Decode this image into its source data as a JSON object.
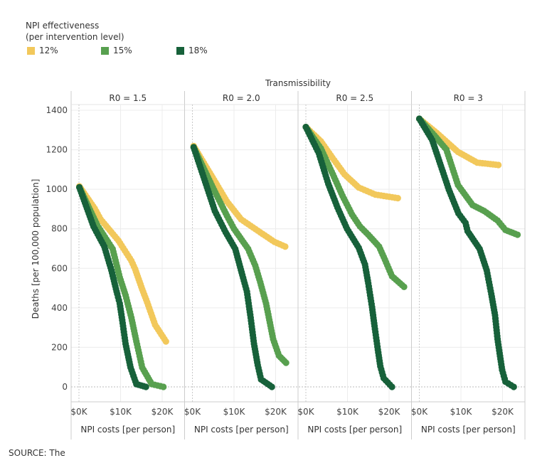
{
  "legend": {
    "title_line1": "NPI effectiveness",
    "title_line2": "(per intervention level)",
    "items": [
      {
        "label": "12%",
        "color": "#f2c85b"
      },
      {
        "label": "15%",
        "color": "#58a04f"
      },
      {
        "label": "18%",
        "color": "#17613a"
      }
    ]
  },
  "source": "SOURCE: The",
  "chart_data": {
    "type": "scatter",
    "facet_title": "Transmissibility",
    "ylabel": "Deaths [per 100,000 population]",
    "xlabel": "NPI costs [per person]",
    "ylim": [
      0,
      1400
    ],
    "yticks": [
      "0",
      "200",
      "400",
      "600",
      "800",
      "1000",
      "1200",
      "1400"
    ],
    "xlim_k": [
      -1.5,
      25.5
    ],
    "xticks": [
      "$0K",
      "$10K",
      "$20K"
    ],
    "grid": true,
    "legend_position": "top-left",
    "facets": [
      {
        "label": "R0 = 1.5",
        "series": [
          {
            "name": "12%",
            "points": [
              [
                0.1,
                1015
              ],
              [
                3.8,
                902
              ],
              [
                5.2,
                848
              ],
              [
                9.5,
                740
              ],
              [
                12.6,
                638
              ],
              [
                13.5,
                596
              ],
              [
                15.2,
                494
              ],
              [
                16.4,
                428
              ],
              [
                18.3,
                314
              ],
              [
                20.9,
                230
              ]
            ]
          },
          {
            "name": "15%",
            "points": [
              [
                0.1,
                1010
              ],
              [
                4.4,
                818
              ],
              [
                8.1,
                698
              ],
              [
                9.8,
                554
              ],
              [
                11.2,
                464
              ],
              [
                12.6,
                350
              ],
              [
                13.8,
                230
              ],
              [
                15.2,
                98
              ],
              [
                17.5,
                14
              ],
              [
                20.3,
                0
              ]
            ]
          },
          {
            "name": "18%",
            "points": [
              [
                0.1,
                1010
              ],
              [
                3.5,
                812
              ],
              [
                6.1,
                710
              ],
              [
                7.8,
                590
              ],
              [
                9.2,
                470
              ],
              [
                9.8,
                422
              ],
              [
                10.4,
                338
              ],
              [
                11.2,
                218
              ],
              [
                12.4,
                98
              ],
              [
                13.8,
                14
              ],
              [
                16.1,
                0
              ]
            ]
          }
        ]
      },
      {
        "label": "R0 = 2.0",
        "series": [
          {
            "name": "12%",
            "points": [
              [
                0.3,
                1219
              ],
              [
                4.9,
                1058
              ],
              [
                8.3,
                938
              ],
              [
                11.7,
                848
              ],
              [
                16.3,
                782
              ],
              [
                19.7,
                734
              ],
              [
                22.3,
                710
              ]
            ]
          },
          {
            "name": "15%",
            "points": [
              [
                0.3,
                1213
              ],
              [
                4.9,
                1009
              ],
              [
                8.3,
                866
              ],
              [
                10,
                800
              ],
              [
                13.4,
                698
              ],
              [
                15.1,
                614
              ],
              [
                16.3,
                530
              ],
              [
                17.7,
                422
              ],
              [
                19.4,
                242
              ],
              [
                20.8,
                158
              ],
              [
                22.5,
                122
              ]
            ]
          },
          {
            "name": "18%",
            "points": [
              [
                0.3,
                1213
              ],
              [
                3.7,
                998
              ],
              [
                5.4,
                890
              ],
              [
                8,
                782
              ],
              [
                10.3,
                698
              ],
              [
                12,
                566
              ],
              [
                13.1,
                482
              ],
              [
                14,
                350
              ],
              [
                14.8,
                218
              ],
              [
                15.7,
                110
              ],
              [
                16.5,
                38
              ],
              [
                19.1,
                0
              ]
            ]
          }
        ]
      },
      {
        "label": "R0 = 2.5",
        "series": [
          {
            "name": "12%",
            "points": [
              [
                0,
                1315
              ],
              [
                3.6,
                1243
              ],
              [
                6.4,
                1159
              ],
              [
                9.3,
                1075
              ],
              [
                12.7,
                1009
              ],
              [
                16.7,
                973
              ],
              [
                22.1,
                955
              ]
            ]
          },
          {
            "name": "15%",
            "points": [
              [
                0,
                1315
              ],
              [
                3.6,
                1207
              ],
              [
                6.5,
                1075
              ],
              [
                8.8,
                967
              ],
              [
                11.1,
                872
              ],
              [
                13,
                812
              ],
              [
                15,
                770
              ],
              [
                17.6,
                710
              ],
              [
                19,
                644
              ],
              [
                20.7,
                560
              ],
              [
                23.6,
                506
              ]
            ]
          },
          {
            "name": "18%",
            "points": [
              [
                0,
                1315
              ],
              [
                3.1,
                1183
              ],
              [
                5.4,
                1027
              ],
              [
                7.6,
                908
              ],
              [
                9.9,
                800
              ],
              [
                12.7,
                704
              ],
              [
                14.2,
                620
              ],
              [
                15,
                524
              ],
              [
                15.9,
                404
              ],
              [
                16.5,
                308
              ],
              [
                17.3,
                188
              ],
              [
                17.9,
                104
              ],
              [
                18.7,
                44
              ],
              [
                20.7,
                0
              ]
            ]
          }
        ]
      },
      {
        "label": "R0 = 3",
        "series": [
          {
            "name": "12%",
            "points": [
              [
                0,
                1357
              ],
              [
                4.2,
                1285
              ],
              [
                9.3,
                1189
              ],
              [
                13.9,
                1135
              ],
              [
                19,
                1123
              ]
            ]
          },
          {
            "name": "15%",
            "points": [
              [
                0,
                1357
              ],
              [
                3.6,
                1273
              ],
              [
                6.5,
                1201
              ],
              [
                9.3,
                1021
              ],
              [
                12.8,
                920
              ],
              [
                15.6,
                890
              ],
              [
                18.8,
                842
              ],
              [
                20.7,
                794
              ],
              [
                23.6,
                770
              ]
            ]
          },
          {
            "name": "18%",
            "points": [
              [
                0,
                1357
              ],
              [
                3.1,
                1249
              ],
              [
                5.4,
                1105
              ],
              [
                7.1,
                998
              ],
              [
                9.4,
                878
              ],
              [
                11.1,
                830
              ],
              [
                11.6,
                788
              ],
              [
                14.5,
                698
              ],
              [
                16.2,
                590
              ],
              [
                17.3,
                470
              ],
              [
                18.2,
                362
              ],
              [
                18.8,
                242
              ],
              [
                19.3,
                170
              ],
              [
                19.9,
                86
              ],
              [
                20.7,
                26
              ],
              [
                22.7,
                0
              ]
            ]
          }
        ]
      }
    ]
  }
}
